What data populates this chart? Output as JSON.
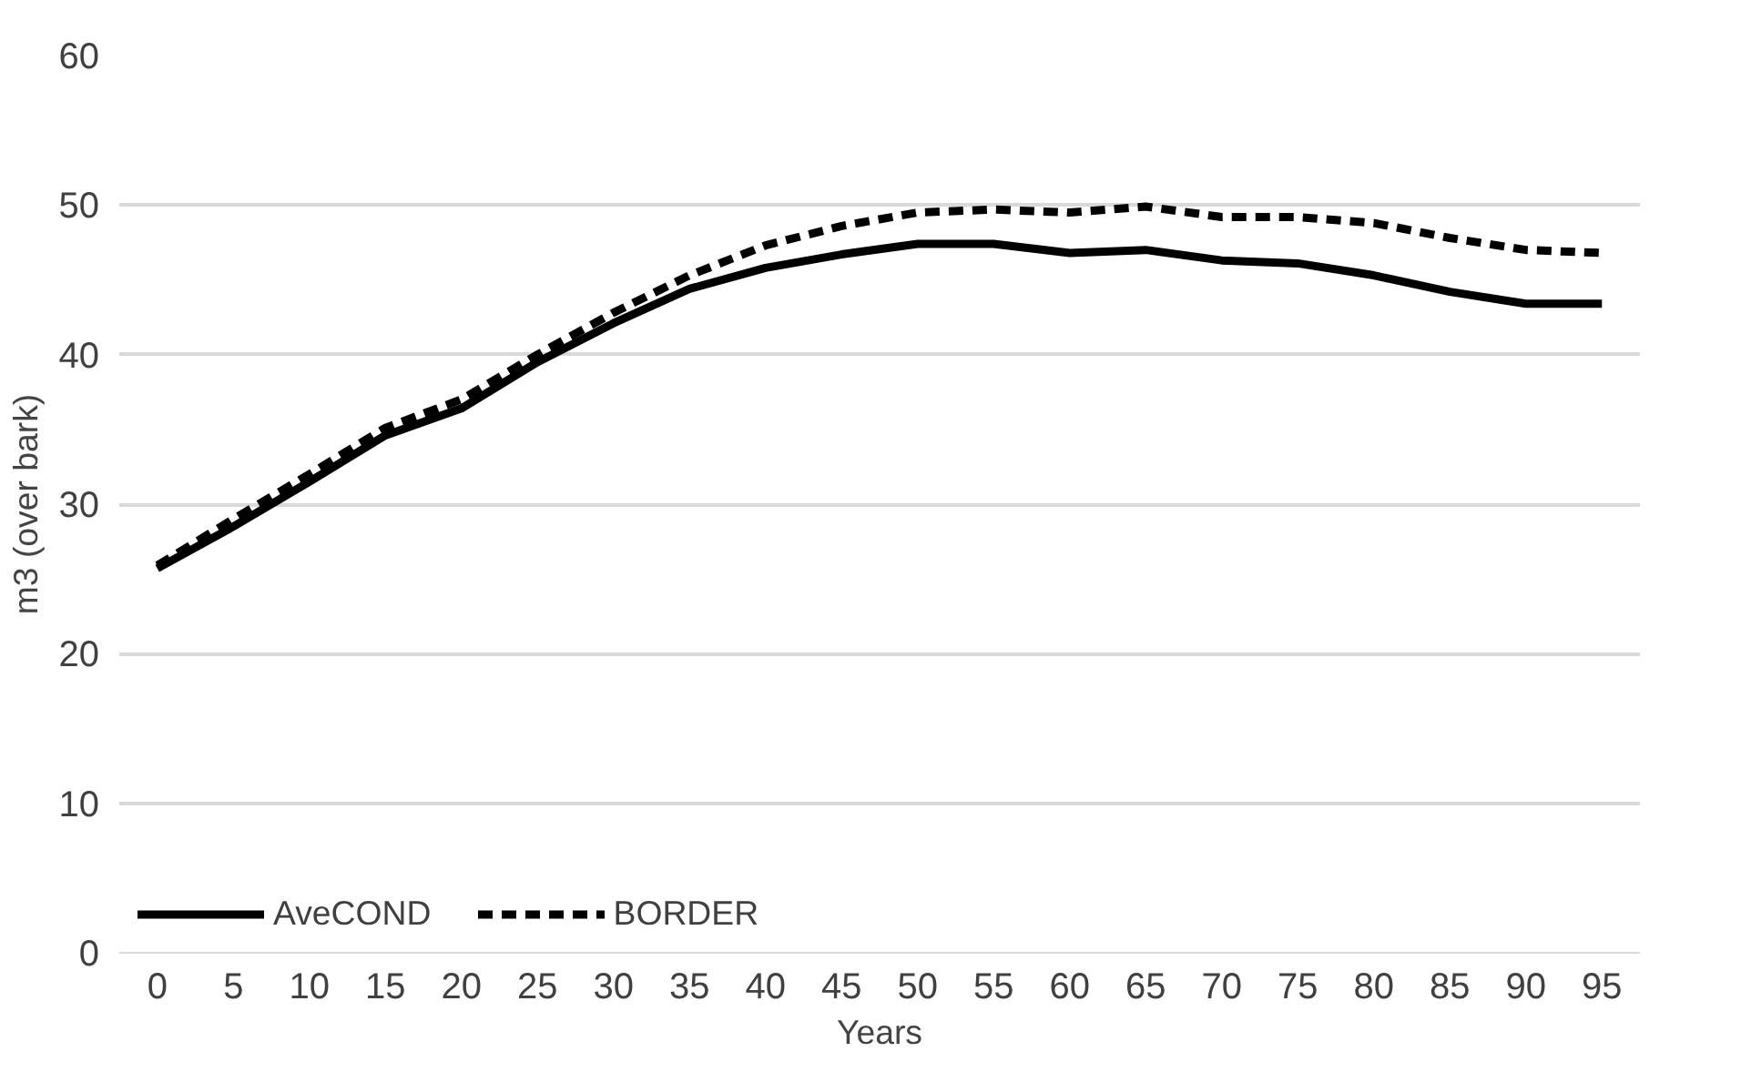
{
  "chart_data": {
    "type": "line",
    "xlabel": "Years",
    "ylabel": "m3 (over bark)",
    "categories": [
      "0",
      "5",
      "10",
      "15",
      "20",
      "25",
      "30",
      "35",
      "40",
      "45",
      "50",
      "55",
      "60",
      "65",
      "70",
      "75",
      "80",
      "85",
      "90",
      "95"
    ],
    "series": [
      {
        "name": "AveCOND",
        "color": "#000000",
        "line_style": "solid",
        "values": [
          25.7,
          28.5,
          31.5,
          34.6,
          36.4,
          39.5,
          42.1,
          44.4,
          45.8,
          46.7,
          47.4,
          47.4,
          46.8,
          47.0,
          46.3,
          46.1,
          45.3,
          44.2,
          43.4,
          43.4
        ]
      },
      {
        "name": "BORDER",
        "color": "#000000",
        "line_style": "dashed",
        "values": [
          25.9,
          29.0,
          32.0,
          35.1,
          37.0,
          40.0,
          42.8,
          45.3,
          47.3,
          48.6,
          49.5,
          49.7,
          49.5,
          49.9,
          49.2,
          49.2,
          48.8,
          47.8,
          47.0,
          46.8
        ]
      }
    ],
    "ylim": [
      0,
      60
    ],
    "yticks": [
      0,
      10,
      20,
      30,
      40,
      50,
      60
    ],
    "grid": "y",
    "legend": "bottom left",
    "marker": "none"
  }
}
